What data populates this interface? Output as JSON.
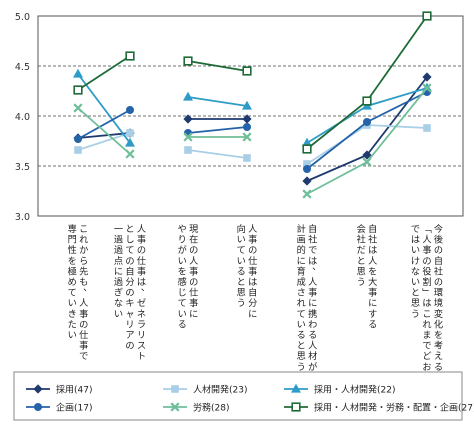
{
  "chart_data": {
    "type": "line",
    "title": "",
    "xlabel": "",
    "ylabel": "",
    "ylim": [
      3.0,
      5.0
    ],
    "yticks": [
      "3.0",
      "3.5",
      "4.0",
      "4.5",
      "5.0"
    ],
    "grid": "dashed horizontal",
    "legend_position": "bottom",
    "categories": [
      "これから先も、人事の仕事で専門性を極めていきたい",
      "人事の仕事は、ゼネラリストとしての自分のキャリアの一過過点に過ぎない",
      "現在の人事の仕事にやりがいを感じている",
      "人事の仕事は自分に向いていると思う",
      "自社では、人事に携わる人材が計画的に育成されていると思う",
      "自社は人を大事にする会社だと思う",
      "今後の自社の環境変化を考えると、「人事の役割」はこれまでどおりではいけないと思う"
    ],
    "category_lines": [
      [
        "これから先も、人事の仕事で",
        "専門性を極めていきたい"
      ],
      [
        "人事の仕事は、ゼネラリスト",
        "としての自分のキャリアの",
        "一過過点に過ぎない"
      ],
      [
        "現在の人事の仕事に",
        "やりがいを感じている"
      ],
      [
        "人事の仕事は自分に",
        "向いていると思う"
      ],
      [
        "自社では、人事に携わる人材が",
        "計画的に育成されていると思う"
      ],
      [
        "自社は人を大事にする",
        "会社だと思う"
      ],
      [
        "今後の自社の環境変化を考えると、",
        "「人事の役割」はこれまでどおり",
        "ではいけないと思う"
      ]
    ],
    "series": [
      {
        "name": "採用(47)",
        "color": "#1f3a6e",
        "marker": "diamond",
        "values": [
          3.78,
          3.83,
          3.97,
          3.97,
          3.35,
          3.61,
          4.39
        ]
      },
      {
        "name": "人材開発(23)",
        "color": "#a9cfe6",
        "marker": "square",
        "values": [
          3.66,
          3.83,
          3.66,
          3.58,
          3.52,
          3.91,
          3.88
        ]
      },
      {
        "name": "採用・人材開発(22)",
        "color": "#2e9cc6",
        "marker": "triangle",
        "values": [
          4.42,
          3.73,
          4.19,
          4.1,
          3.73,
          4.1,
          4.28
        ]
      },
      {
        "name": "企画(17)",
        "color": "#2563a8",
        "marker": "circle",
        "values": [
          3.77,
          4.06,
          3.83,
          3.89,
          3.47,
          3.94,
          4.24
        ]
      },
      {
        "name": "労務(28)",
        "color": "#6fbf9a",
        "marker": "x",
        "values": [
          4.08,
          3.62,
          3.79,
          3.79,
          3.22,
          3.54,
          4.28
        ]
      },
      {
        "name": "採用・人材開発・労務・配置・企画(27)",
        "color": "#1e6b38",
        "marker": "open-square",
        "values": [
          4.26,
          4.6,
          4.55,
          4.45,
          3.67,
          4.15,
          5.0
        ]
      }
    ]
  }
}
